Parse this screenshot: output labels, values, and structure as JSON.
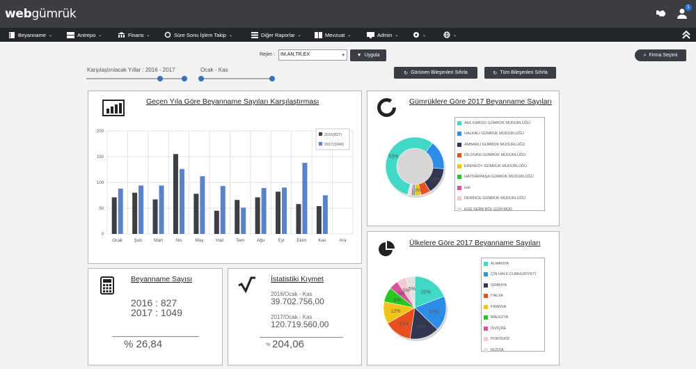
{
  "app": {
    "logo_a": "web",
    "logo_b": "gümrük",
    "notif_count": "1"
  },
  "nav": [
    {
      "label": "Beyanname",
      "icon": "book-icon"
    },
    {
      "label": "Antrepo",
      "icon": "warehouse-icon"
    },
    {
      "label": "Finans",
      "icon": "bank-icon"
    },
    {
      "label": "Süre Sonu İşlem Takip",
      "icon": "refresh-icon"
    },
    {
      "label": "Diğer Raporlar",
      "icon": "list-icon"
    },
    {
      "label": "Mevzuat",
      "icon": "books-icon"
    },
    {
      "label": "Admin",
      "icon": "monitor-icon"
    },
    {
      "label": "",
      "icon": "gear-icon"
    },
    {
      "label": "",
      "icon": "globe-icon"
    }
  ],
  "filters": {
    "regime_label": "Rejim :",
    "regime_value": "IM,AN,TR,EX",
    "apply": "Uygula",
    "firm_select": "Firma Seçimi",
    "years_label": "Karşılaştırılacak Yıllar : 2016 - 2017",
    "months_label": "Ocak - Kas",
    "reset_visible": "Görünen Bileşenleri Sıfırla",
    "reset_all": "Tüm Bileşenleri Sıfırla"
  },
  "panels": {
    "compare_title": "Geçen Yıla Göre Beyanname Sayıları Karşılaştırması",
    "customs_title": "Gümrüklere Göre 2017 Beyanname Sayıları",
    "countries_title": "Ülkelere Göre 2017 Beyanname Sayıları",
    "count_title": "Beyanname Sayısı",
    "count_2016": "2016 : 827",
    "count_2017": "2017 : 1049",
    "count_pct": "% 26,84",
    "value_title": "İstatistiki Kıymet",
    "value_2016_label": "2016/Ocak - Kas",
    "value_2016": "39.702.756,00",
    "value_2017_label": "2017/Ocak - Kas",
    "value_2017": "120.719.560,00",
    "value_pct_sign": "%",
    "value_pct": "204,06"
  },
  "colors": {
    "s2016": "#3b3e44",
    "s2017": "#5a82c9"
  },
  "chart_data": [
    {
      "type": "bar",
      "title": "Geçen Yıla Göre Beyanname Sayıları Karşılaştırması",
      "categories": [
        "Ocak",
        "Şub",
        "Mart",
        "Nis",
        "May",
        "Haz",
        "Tem",
        "Ağu",
        "Eyl",
        "Ekim",
        "Kas",
        "Ara"
      ],
      "series": [
        {
          "name": "2016(827)",
          "values": [
            71,
            80,
            67,
            155,
            78,
            45,
            66,
            71,
            82,
            58,
            54,
            0
          ]
        },
        {
          "name": "2017(1049)",
          "values": [
            88,
            94,
            94,
            126,
            112,
            93,
            51,
            89,
            90,
            138,
            75,
            0
          ]
        }
      ],
      "yticks": [
        0,
        50,
        100,
        150,
        200
      ],
      "ylim": [
        0,
        200
      ],
      "grid": true,
      "legend": "top-right"
    },
    {
      "type": "pie",
      "style": "donut",
      "title": "Gümrüklere Göre 2017 Beyanname Sayıları",
      "labels": [
        "AHL KARGO GÜMRÜK MÜDÜRLÜĞÜ",
        "HALKALI GÜMRÜK MÜDÜRLÜĞÜ",
        "AMBARLI GÜMRÜK MÜDÜRLÜĞÜ",
        "DİLOVASI GÜMRÜK MÜDÜRLÜĞÜ",
        "ERENKÖY GÜMRÜK MÜDÜRLÜĞÜ",
        "HAYDARPAŞA GÜMRÜK MÜDÜRLÜĞÜ",
        "null",
        "DERİNCE GÜMRÜK MÜDÜRLÜĞÜ",
        "EGE SERB BÖL GÜM MÜD"
      ],
      "values": [
        53,
        15,
        14,
        5,
        3,
        1,
        1,
        1,
        1
      ],
      "slice_labels": [
        "53%",
        "",
        "14%",
        "",
        "3%",
        "",
        "",
        "",
        ""
      ],
      "colors": [
        "#40d9c6",
        "#2d8ce6",
        "#333650",
        "#e8501e",
        "#f2c417",
        "#26c71e",
        "#d8529c",
        "#f4c7d2",
        "#e0e0e0"
      ],
      "legend": "right"
    },
    {
      "type": "pie",
      "title": "Ülkelere Göre 2017 Beyanname Sayıları",
      "labels": [
        "ALMANYA",
        "ÇİN HALK CUMHURİYETİ",
        "İSPANYA",
        "İTALYA",
        "FRANSA",
        "MALEZYA",
        "İSVİÇRE",
        "PORTEKİZ",
        "RUSYA"
      ],
      "values": [
        20,
        19,
        16,
        15,
        12,
        8,
        5,
        5,
        5
      ],
      "slice_labels": [
        "20%",
        "19%",
        "16%",
        "15%",
        "12%",
        "8%",
        "5%",
        "5%",
        "5%"
      ],
      "colors": [
        "#40d9c6",
        "#2d8ce6",
        "#333650",
        "#e8501e",
        "#f2c417",
        "#26c71e",
        "#d8529c",
        "#f4c7d2",
        "#e0e0e0"
      ],
      "legend": "right"
    }
  ]
}
